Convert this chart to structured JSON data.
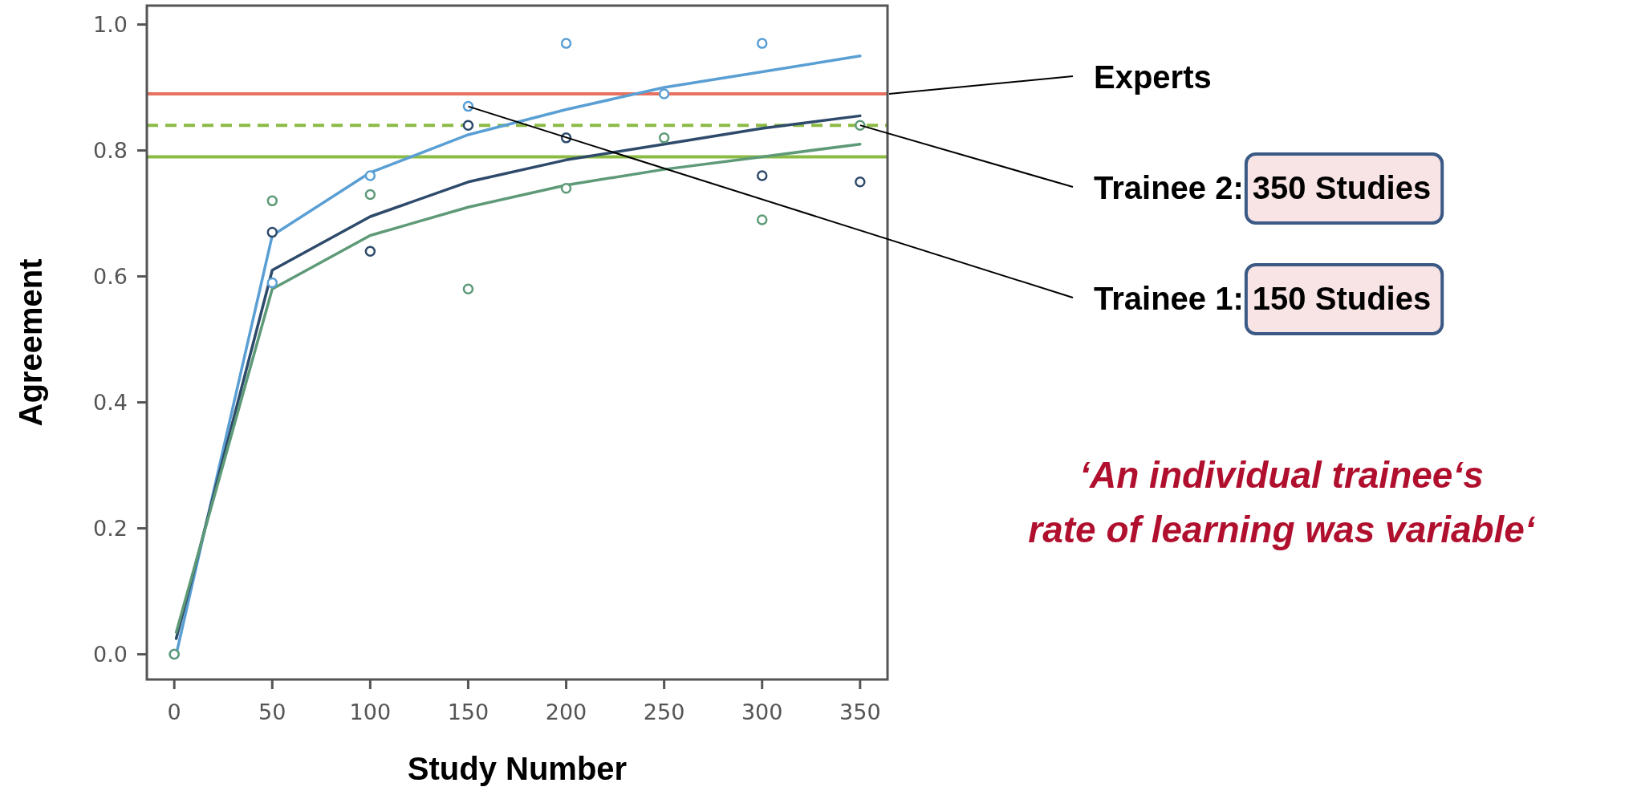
{
  "chart_data": {
    "type": "line",
    "xlabel": "Study Number",
    "ylabel": "Agreement",
    "xlim": [
      -14,
      364
    ],
    "xticks": [
      0,
      50,
      100,
      150,
      200,
      250,
      300,
      350
    ],
    "ylim": [
      -0.04,
      1.03
    ],
    "yticks": [
      {
        "value": 0,
        "label": "0.0"
      },
      0.2,
      0.4,
      0.6,
      0.8,
      {
        "value": 1,
        "label": "1.0"
      }
    ],
    "grid": false,
    "series": [
      {
        "color": "#5a9fd4",
        "marker": "none",
        "x": [
          1,
          50,
          100,
          150,
          200,
          250,
          300,
          350
        ],
        "values": [
          0.0,
          0.665,
          0.765,
          0.825,
          0.865,
          0.9,
          0.925,
          0.95
        ]
      },
      {
        "color": "#2e4a6b",
        "marker": "none",
        "x": [
          1,
          50,
          100,
          150,
          200,
          250,
          300,
          350
        ],
        "values": [
          0.025,
          0.61,
          0.695,
          0.75,
          0.785,
          0.81,
          0.835,
          0.855
        ]
      },
      {
        "color": "#5e9a78",
        "marker": "none",
        "x": [
          1,
          50,
          100,
          150,
          200,
          250,
          300,
          350
        ],
        "values": [
          0.035,
          0.58,
          0.665,
          0.71,
          0.745,
          0.77,
          0.79,
          0.81
        ]
      },
      {
        "type": "scatter",
        "color": "#5a9fd4",
        "marker": "circle",
        "x": [
          0,
          50,
          100,
          150,
          200,
          250,
          300
        ],
        "values": [
          0.0,
          0.59,
          0.76,
          0.87,
          0.97,
          0.89,
          0.97
        ]
      },
      {
        "type": "scatter",
        "color": "#2e4a6b",
        "marker": "circle",
        "x": [
          50,
          100,
          150,
          200,
          300,
          350
        ],
        "values": [
          0.67,
          0.64,
          0.84,
          0.82,
          0.76,
          0.75
        ]
      },
      {
        "type": "scatter",
        "color": "#5e9a78",
        "marker": "circle",
        "x": [
          0,
          50,
          100,
          150,
          200,
          250,
          300,
          350
        ],
        "values": [
          0.0,
          0.72,
          0.73,
          0.58,
          0.74,
          0.82,
          0.69,
          0.84
        ]
      }
    ],
    "ref_lines": [
      {
        "axis": "y",
        "value": 0.89,
        "color": "#e8705f",
        "line_style": "solid"
      },
      {
        "axis": "y",
        "value": 0.84,
        "color": "#8cbb45",
        "line_style": "dashed"
      },
      {
        "axis": "y",
        "value": 0.79,
        "color": "#8cbb45",
        "line_style": "solid"
      }
    ],
    "annotations": [
      {
        "text": "Experts",
        "x": 364,
        "y": 0.89
      },
      {
        "text": "Trainee 2: 350 Studies",
        "x": 350,
        "y": 0.84
      },
      {
        "text": "Trainee 1: 150 Studies",
        "x": 150,
        "y": 0.87
      },
      "‘An individual trainee‘s\nrate of learning was variable‘"
    ]
  }
}
